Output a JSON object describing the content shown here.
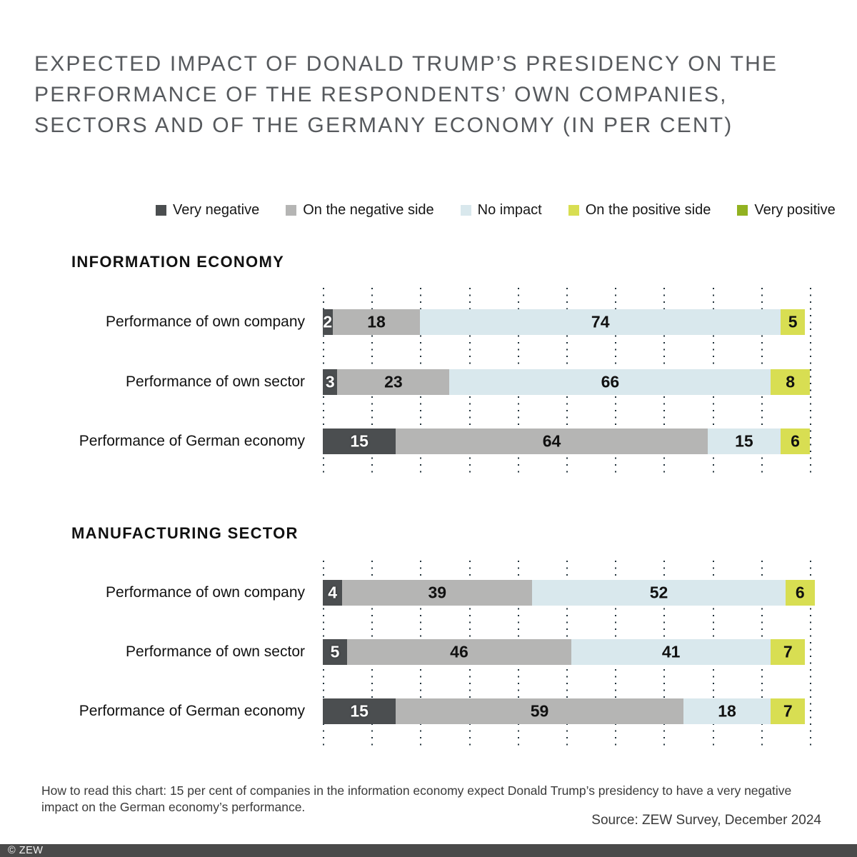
{
  "title": "EXPECTED IMPACT OF DONALD TRUMP’S PRESIDENCY ON THE PERFORMANCE OF THE RESPONDENTS’ OWN COMPANIES, SECTORS AND OF THE GERMANY ECONOMY (IN PER CENT)",
  "legend": {
    "items": [
      {
        "label": "Very negative",
        "color": "#4b4e50"
      },
      {
        "label": "On the negative side",
        "color": "#b5b5b4"
      },
      {
        "label": "No impact",
        "color": "#d9e8ed"
      },
      {
        "label": "On the positive side",
        "color": "#d8de52"
      },
      {
        "label": "Very positive",
        "color": "#92b221"
      }
    ]
  },
  "chart_data": {
    "type": "bar",
    "variant": "horizontal-stacked",
    "unit": "per cent",
    "x_range": [
      0,
      100
    ],
    "gridlines": "dotted vertical every 10",
    "legend_position": "top",
    "series_colors": {
      "Very negative": "#4b4e50",
      "On the negative side": "#b5b5b4",
      "No impact": "#d9e8ed",
      "On the positive side": "#d8de52",
      "Very positive": "#92b221"
    },
    "groups": [
      {
        "name": "INFORMATION ECONOMY",
        "rows": [
          {
            "label": "Performance of own company",
            "segments": [
              {
                "series": "Very negative",
                "value": 2
              },
              {
                "series": "On the negative side",
                "value": 18
              },
              {
                "series": "No impact",
                "value": 74
              },
              {
                "series": "On the positive side",
                "value": 5
              }
            ]
          },
          {
            "label": "Performance of own sector",
            "segments": [
              {
                "series": "Very negative",
                "value": 3
              },
              {
                "series": "On the negative side",
                "value": 23
              },
              {
                "series": "No impact",
                "value": 66
              },
              {
                "series": "On the positive side",
                "value": 8
              }
            ]
          },
          {
            "label": "Performance of German economy",
            "segments": [
              {
                "series": "Very negative",
                "value": 15
              },
              {
                "series": "On the negative side",
                "value": 64
              },
              {
                "series": "No impact",
                "value": 15
              },
              {
                "series": "On the positive side",
                "value": 6
              }
            ]
          }
        ]
      },
      {
        "name": "MANUFACTURING SECTOR",
        "rows": [
          {
            "label": "Performance of own company",
            "segments": [
              {
                "series": "Very negative",
                "value": 4
              },
              {
                "series": "On the negative side",
                "value": 39
              },
              {
                "series": "No impact",
                "value": 52
              },
              {
                "series": "On the positive side",
                "value": 6
              }
            ]
          },
          {
            "label": "Performance of own sector",
            "segments": [
              {
                "series": "Very negative",
                "value": 5
              },
              {
                "series": "On the negative side",
                "value": 46
              },
              {
                "series": "No impact",
                "value": 41
              },
              {
                "series": "On the positive side",
                "value": 7
              }
            ]
          },
          {
            "label": "Performance of German economy",
            "segments": [
              {
                "series": "Very negative",
                "value": 15
              },
              {
                "series": "On the negative side",
                "value": 59
              },
              {
                "series": "No impact",
                "value": 18
              },
              {
                "series": "On the positive side",
                "value": 7
              }
            ]
          }
        ]
      }
    ]
  },
  "footnote": "How to read this chart: 15 per cent of companies in the information economy expect Donald Trump’s presidency to have a very negative impact on the German economy’s performance.",
  "source": "Source: ZEW Survey, December 2024",
  "copyright": "© ZEW"
}
